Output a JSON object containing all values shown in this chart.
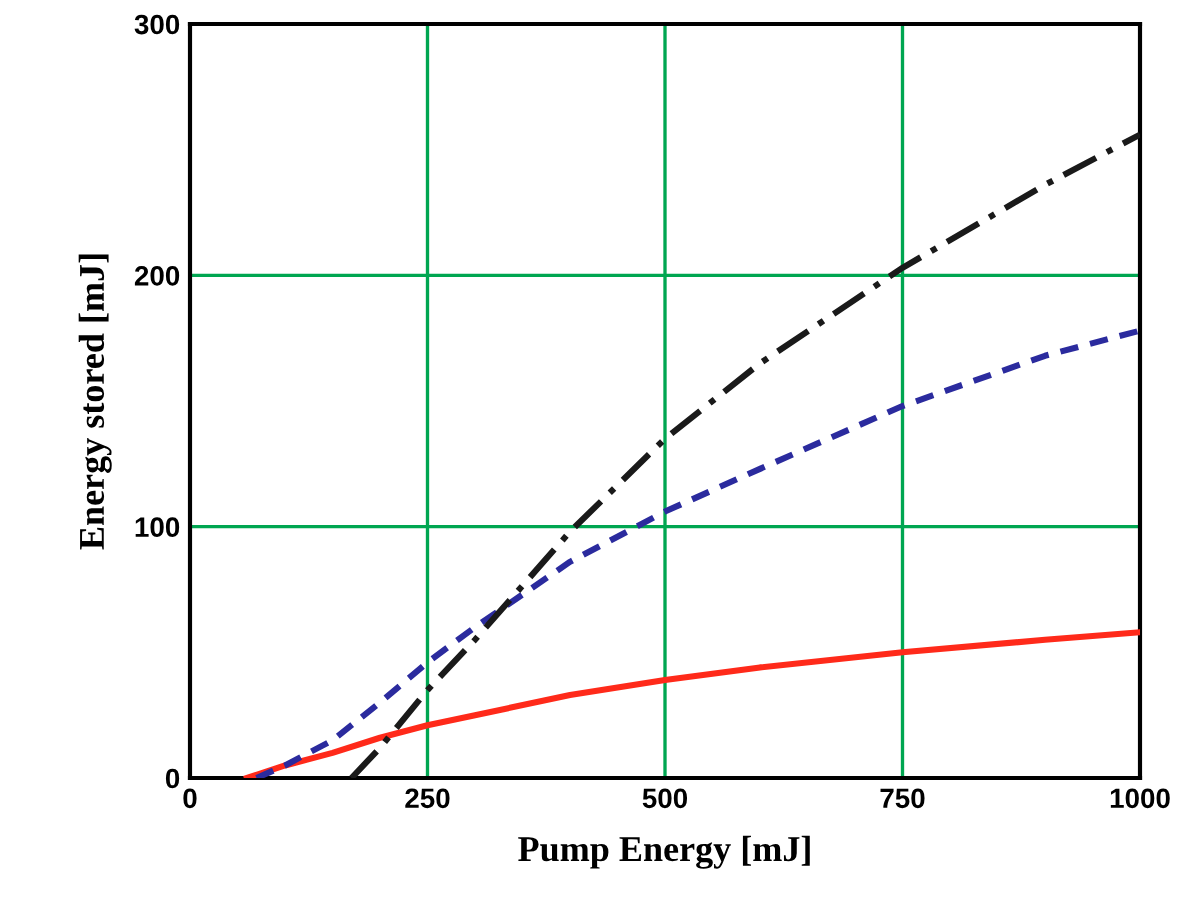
{
  "chart_data": {
    "type": "line",
    "xlabel": "Pump Energy [mJ]",
    "ylabel": "Energy stored [mJ]",
    "xlim": [
      0,
      1000
    ],
    "ylim": [
      0,
      300
    ],
    "xticks": [
      0,
      250,
      500,
      750,
      1000
    ],
    "yticks": [
      0,
      100,
      200,
      300
    ],
    "grid": true,
    "series": [
      {
        "color": "#ff2a1a",
        "line_style": "solid",
        "x": [
          60,
          100,
          150,
          200,
          250,
          300,
          400,
          500,
          600,
          750,
          900,
          1000
        ],
        "values": [
          0,
          5,
          10,
          16,
          21,
          25,
          33,
          39,
          44,
          50,
          55,
          58
        ]
      },
      {
        "color": "#2b2b9e",
        "line_style": "dashed",
        "x": [
          70,
          100,
          150,
          200,
          250,
          300,
          400,
          500,
          600,
          750,
          900,
          1000
        ],
        "values": [
          0,
          5,
          15,
          30,
          46,
          60,
          86,
          106,
          123,
          148,
          168,
          178
        ]
      },
      {
        "color": "#1a1a1a",
        "line_style": "dashdot",
        "x": [
          170,
          200,
          250,
          300,
          400,
          500,
          600,
          750,
          900,
          1000
        ],
        "values": [
          0,
          12,
          35,
          55,
          98,
          135,
          165,
          203,
          236,
          256
        ]
      }
    ]
  }
}
